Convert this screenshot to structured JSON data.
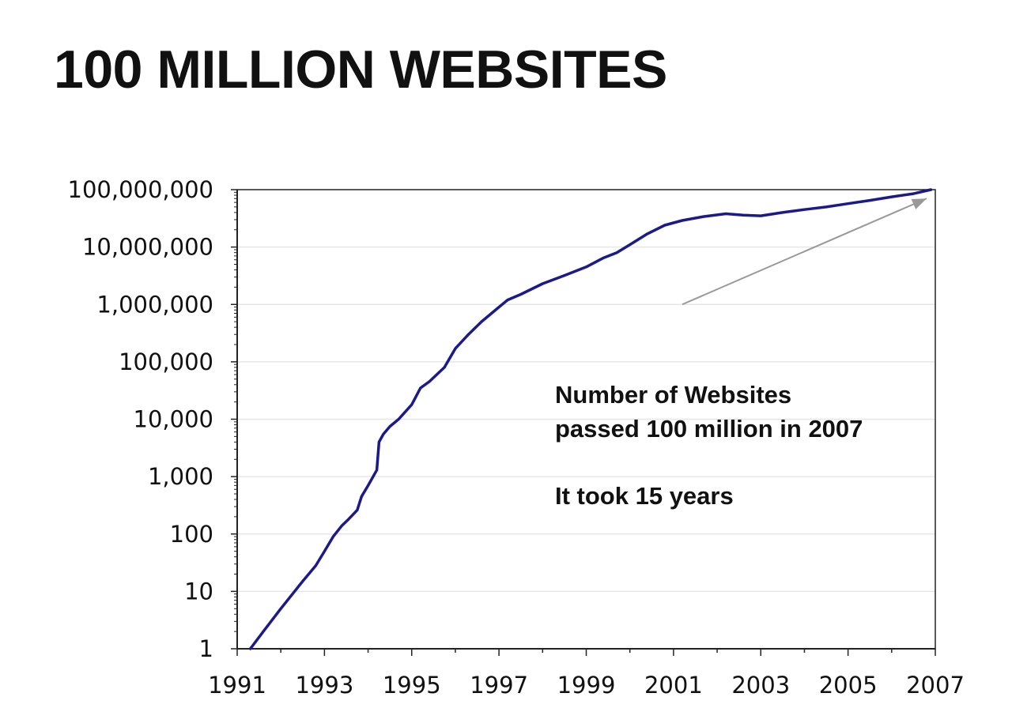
{
  "page": {
    "title": "100 MILLION WEBSITES"
  },
  "chart_data": {
    "type": "line",
    "title": "100 MILLION WEBSITES",
    "xlabel": "",
    "ylabel": "",
    "yscale": "log",
    "xlim": [
      1991,
      2007
    ],
    "ylim": [
      1,
      100000000
    ],
    "grid": true,
    "x_ticks": [
      1991,
      1993,
      1995,
      1997,
      1999,
      2001,
      2003,
      2005,
      2007
    ],
    "x_tick_labels": [
      "1991",
      "1993",
      "1995",
      "1997",
      "1999",
      "2001",
      "2003",
      "2005",
      "2007"
    ],
    "y_ticks": [
      1,
      10,
      100,
      1000,
      10000,
      100000,
      1000000,
      10000000,
      100000000
    ],
    "y_tick_labels": [
      "1",
      "10",
      "100",
      "1,000",
      "10,000",
      "100,000",
      "1,000,000",
      "10,000,000",
      "100,000,000"
    ],
    "series": [
      {
        "name": "Number of Websites",
        "color": "#1a1a8c",
        "x": [
          1991.3,
          1991.6,
          1992.0,
          1992.5,
          1992.8,
          1993.0,
          1993.2,
          1993.4,
          1993.55,
          1993.75,
          1993.85,
          1994.0,
          1994.2,
          1994.25,
          1994.35,
          1994.5,
          1994.7,
          1995.0,
          1995.2,
          1995.4,
          1995.75,
          1996.0,
          1996.3,
          1996.6,
          1997.0,
          1997.2,
          1997.5,
          1998.0,
          1998.5,
          1999.0,
          1999.4,
          1999.7,
          2000.0,
          2000.4,
          2000.8,
          2001.2,
          2001.7,
          2002.2,
          2002.6,
          2003.0,
          2003.5,
          2004.0,
          2004.5,
          2005.0,
          2005.5,
          2006.0,
          2006.5,
          2006.9
        ],
        "values": [
          1,
          2,
          5,
          15,
          28,
          50,
          90,
          140,
          180,
          260,
          450,
          700,
          1300,
          4000,
          5500,
          7500,
          10000,
          18000,
          35000,
          45000,
          80000,
          170000,
          300000,
          500000,
          900000,
          1200000,
          1500000,
          2300000,
          3200000,
          4500000,
          6500000,
          8000000,
          11000000,
          17000000,
          24000000,
          29000000,
          34000000,
          38000000,
          36000000,
          35000000,
          40000000,
          45000000,
          50000000,
          57000000,
          65000000,
          75000000,
          85000000,
          100000000
        ]
      }
    ],
    "annotations": [
      {
        "text": "Number of Websites",
        "type": "text"
      },
      {
        "text": "passed 100 million in 2007",
        "type": "text"
      },
      {
        "text": "It took 15 years",
        "type": "text"
      }
    ],
    "arrow": {
      "from": {
        "x": 2001.2,
        "y": 1000000
      },
      "to": {
        "x": 2006.8,
        "y": 70000000
      },
      "color": "#999999"
    },
    "grid_color": "#e6e6e6",
    "axis_color": "#222222"
  }
}
